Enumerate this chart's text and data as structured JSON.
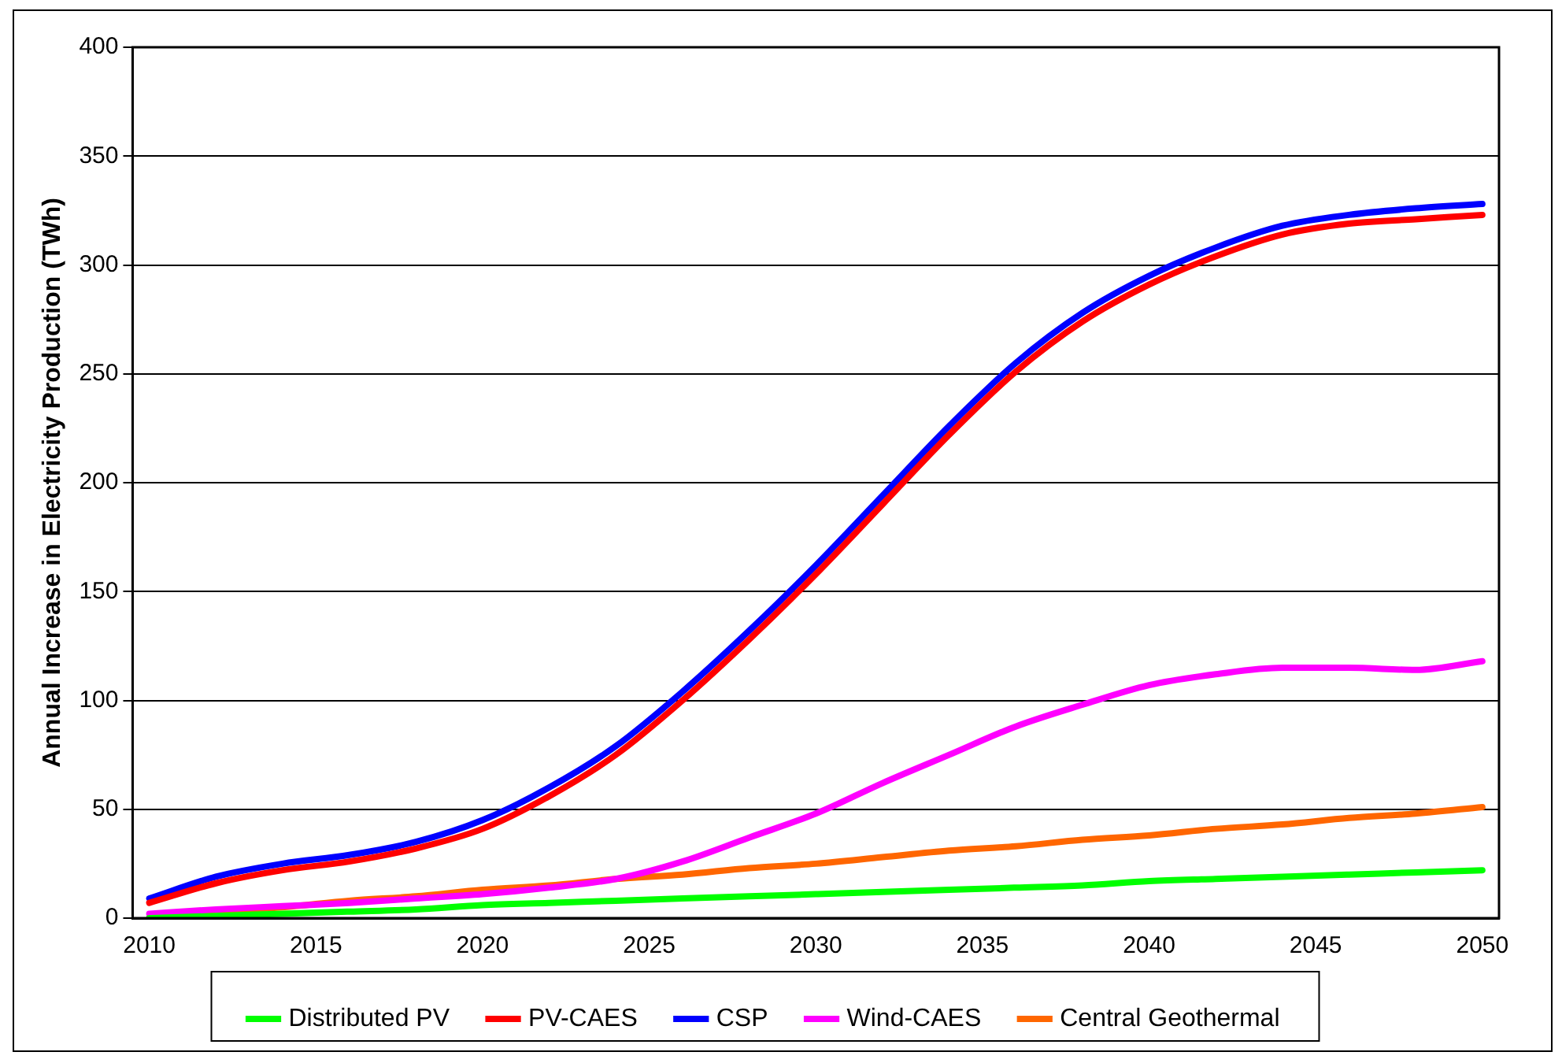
{
  "chart_data": {
    "type": "line",
    "ylabel": "Annual Increase in Electricity Production (TWh)",
    "x": [
      2010,
      2012,
      2014,
      2016,
      2018,
      2020,
      2022,
      2024,
      2026,
      2028,
      2030,
      2032,
      2034,
      2036,
      2038,
      2040,
      2042,
      2044,
      2046,
      2048,
      2050
    ],
    "xlim": [
      2009.5,
      2050.5
    ],
    "xticks": [
      2010,
      2015,
      2020,
      2025,
      2030,
      2035,
      2040,
      2045,
      2050
    ],
    "ylim": [
      0,
      400
    ],
    "yticks": [
      0,
      50,
      100,
      150,
      200,
      250,
      300,
      350,
      400
    ],
    "grid": "y",
    "legend": "bottom",
    "marker": "none",
    "line_style": "solid",
    "series": [
      {
        "name": "Distributed PV",
        "color": "#00ff00",
        "values": [
          0,
          1,
          2,
          3,
          4,
          6,
          7,
          8,
          9,
          10,
          11,
          12,
          13,
          14,
          15,
          17,
          18,
          19,
          20,
          21,
          22
        ]
      },
      {
        "name": "PV-CAES",
        "color": "#ff0000",
        "values": [
          7,
          16,
          22,
          26,
          32,
          41,
          56,
          75,
          100,
          128,
          158,
          190,
          222,
          251,
          274,
          291,
          304,
          314,
          319,
          321,
          323
        ]
      },
      {
        "name": "CSP",
        "color": "#0000ff",
        "values": [
          9,
          19,
          25,
          29,
          35,
          45,
          60,
          79,
          104,
          132,
          162,
          194,
          226,
          255,
          278,
          295,
          308,
          318,
          323,
          326,
          328
        ]
      },
      {
        "name": "Wind-CAES",
        "color": "#ff00ff",
        "values": [
          2,
          4,
          5.5,
          7,
          9,
          11,
          14,
          18,
          26,
          37,
          48,
          62,
          75,
          88,
          98,
          107,
          112,
          115,
          115,
          114,
          118
        ]
      },
      {
        "name": "Central Geothermal",
        "color": "#ff6600",
        "values": [
          0,
          3,
          5,
          8,
          10,
          13,
          15,
          18,
          20,
          23,
          25,
          28,
          31,
          33,
          36,
          38,
          41,
          43,
          46,
          48,
          51
        ]
      }
    ]
  }
}
